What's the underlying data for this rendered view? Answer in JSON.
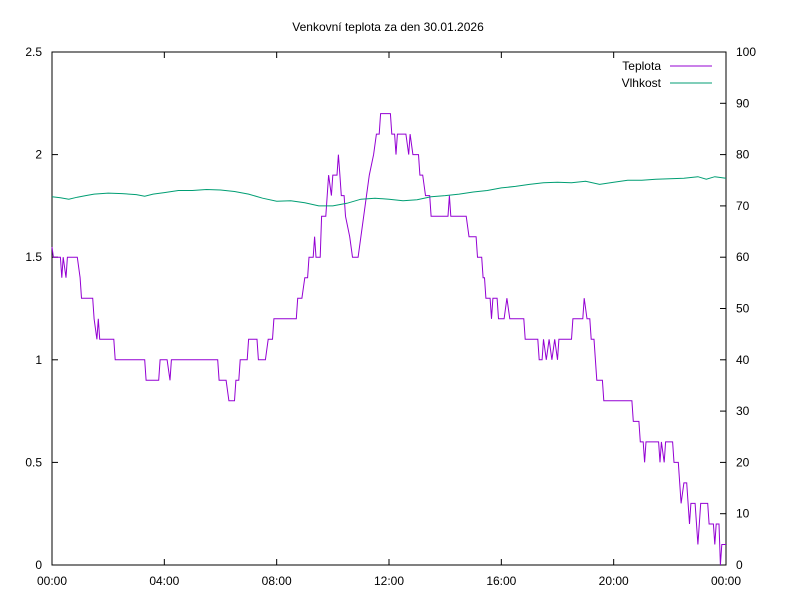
{
  "chart_data": {
    "type": "line",
    "title": "Venkovní teplota za den 30.01.2026",
    "x_ticks": [
      "00:00",
      "04:00",
      "08:00",
      "12:00",
      "16:00",
      "20:00",
      "00:00"
    ],
    "x_range_hours": [
      0,
      24
    ],
    "y_left": {
      "range": [
        0,
        2.5
      ],
      "ticks": [
        "0",
        "0.5",
        "1",
        "1.5",
        "2",
        "2.5"
      ]
    },
    "y_right": {
      "range": [
        0,
        100
      ],
      "ticks": [
        "0",
        "10",
        "20",
        "30",
        "40",
        "50",
        "60",
        "70",
        "80",
        "90",
        "100"
      ]
    },
    "grid": false,
    "legend_position": "top-right",
    "series": [
      {
        "name": "Teplota",
        "axis": "left",
        "color": "#9400d3",
        "points": [
          [
            0.0,
            1.55
          ],
          [
            0.05,
            1.5
          ],
          [
            0.3,
            1.5
          ],
          [
            0.35,
            1.4
          ],
          [
            0.4,
            1.5
          ],
          [
            0.5,
            1.4
          ],
          [
            0.55,
            1.5
          ],
          [
            0.9,
            1.5
          ],
          [
            1.0,
            1.4
          ],
          [
            1.05,
            1.3
          ],
          [
            1.45,
            1.3
          ],
          [
            1.5,
            1.2
          ],
          [
            1.6,
            1.1
          ],
          [
            1.65,
            1.2
          ],
          [
            1.7,
            1.1
          ],
          [
            2.2,
            1.1
          ],
          [
            2.25,
            1.0
          ],
          [
            3.3,
            1.0
          ],
          [
            3.35,
            0.9
          ],
          [
            3.8,
            0.9
          ],
          [
            3.85,
            1.0
          ],
          [
            4.1,
            1.0
          ],
          [
            4.2,
            0.9
          ],
          [
            4.25,
            1.0
          ],
          [
            5.9,
            1.0
          ],
          [
            5.95,
            0.9
          ],
          [
            6.2,
            0.9
          ],
          [
            6.3,
            0.8
          ],
          [
            6.5,
            0.8
          ],
          [
            6.55,
            0.9
          ],
          [
            6.65,
            0.9
          ],
          [
            6.7,
            1.0
          ],
          [
            6.95,
            1.0
          ],
          [
            7.0,
            1.1
          ],
          [
            7.3,
            1.1
          ],
          [
            7.35,
            1.0
          ],
          [
            7.6,
            1.0
          ],
          [
            7.7,
            1.1
          ],
          [
            7.85,
            1.1
          ],
          [
            7.9,
            1.2
          ],
          [
            8.7,
            1.2
          ],
          [
            8.75,
            1.3
          ],
          [
            8.9,
            1.3
          ],
          [
            9.0,
            1.4
          ],
          [
            9.1,
            1.4
          ],
          [
            9.15,
            1.5
          ],
          [
            9.3,
            1.5
          ],
          [
            9.35,
            1.6
          ],
          [
            9.4,
            1.5
          ],
          [
            9.55,
            1.5
          ],
          [
            9.6,
            1.7
          ],
          [
            9.75,
            1.7
          ],
          [
            9.8,
            1.8
          ],
          [
            9.85,
            1.9
          ],
          [
            9.95,
            1.8
          ],
          [
            10.0,
            1.9
          ],
          [
            10.15,
            1.9
          ],
          [
            10.2,
            2.0
          ],
          [
            10.25,
            1.9
          ],
          [
            10.3,
            1.8
          ],
          [
            10.4,
            1.8
          ],
          [
            10.45,
            1.7
          ],
          [
            10.6,
            1.6
          ],
          [
            10.7,
            1.5
          ],
          [
            10.9,
            1.5
          ],
          [
            11.0,
            1.6
          ],
          [
            11.1,
            1.7
          ],
          [
            11.2,
            1.8
          ],
          [
            11.3,
            1.9
          ],
          [
            11.45,
            2.0
          ],
          [
            11.55,
            2.1
          ],
          [
            11.65,
            2.1
          ],
          [
            11.7,
            2.2
          ],
          [
            12.05,
            2.2
          ],
          [
            12.1,
            2.1
          ],
          [
            12.2,
            2.1
          ],
          [
            12.25,
            2.0
          ],
          [
            12.3,
            2.1
          ],
          [
            12.6,
            2.1
          ],
          [
            12.7,
            2.0
          ],
          [
            12.75,
            2.1
          ],
          [
            12.85,
            2.0
          ],
          [
            13.05,
            2.0
          ],
          [
            13.1,
            1.9
          ],
          [
            13.2,
            1.9
          ],
          [
            13.3,
            1.8
          ],
          [
            13.45,
            1.8
          ],
          [
            13.5,
            1.7
          ],
          [
            14.1,
            1.7
          ],
          [
            14.15,
            1.8
          ],
          [
            14.2,
            1.7
          ],
          [
            14.75,
            1.7
          ],
          [
            14.85,
            1.6
          ],
          [
            15.1,
            1.6
          ],
          [
            15.15,
            1.5
          ],
          [
            15.3,
            1.5
          ],
          [
            15.35,
            1.4
          ],
          [
            15.4,
            1.4
          ],
          [
            15.45,
            1.3
          ],
          [
            15.6,
            1.3
          ],
          [
            15.65,
            1.2
          ],
          [
            15.7,
            1.3
          ],
          [
            15.85,
            1.3
          ],
          [
            15.9,
            1.2
          ],
          [
            16.1,
            1.2
          ],
          [
            16.2,
            1.3
          ],
          [
            16.3,
            1.2
          ],
          [
            16.8,
            1.2
          ],
          [
            16.85,
            1.1
          ],
          [
            17.3,
            1.1
          ],
          [
            17.35,
            1.0
          ],
          [
            17.45,
            1.0
          ],
          [
            17.5,
            1.1
          ],
          [
            17.6,
            1.0
          ],
          [
            17.7,
            1.1
          ],
          [
            17.8,
            1.0
          ],
          [
            17.9,
            1.1
          ],
          [
            18.0,
            1.0
          ],
          [
            18.05,
            1.1
          ],
          [
            18.5,
            1.1
          ],
          [
            18.55,
            1.2
          ],
          [
            18.9,
            1.2
          ],
          [
            18.95,
            1.3
          ],
          [
            19.05,
            1.2
          ],
          [
            19.15,
            1.2
          ],
          [
            19.2,
            1.1
          ],
          [
            19.3,
            1.1
          ],
          [
            19.35,
            1.0
          ],
          [
            19.4,
            0.9
          ],
          [
            19.6,
            0.9
          ],
          [
            19.65,
            0.8
          ],
          [
            20.65,
            0.8
          ],
          [
            20.7,
            0.7
          ],
          [
            20.9,
            0.7
          ],
          [
            20.95,
            0.6
          ],
          [
            21.05,
            0.6
          ],
          [
            21.1,
            0.5
          ],
          [
            21.15,
            0.6
          ],
          [
            21.6,
            0.6
          ],
          [
            21.65,
            0.5
          ],
          [
            21.7,
            0.6
          ],
          [
            21.8,
            0.5
          ],
          [
            21.85,
            0.6
          ],
          [
            22.1,
            0.6
          ],
          [
            22.15,
            0.5
          ],
          [
            22.3,
            0.5
          ],
          [
            22.35,
            0.4
          ],
          [
            22.4,
            0.3
          ],
          [
            22.5,
            0.4
          ],
          [
            22.6,
            0.4
          ],
          [
            22.65,
            0.3
          ],
          [
            22.7,
            0.2
          ],
          [
            22.75,
            0.3
          ],
          [
            22.9,
            0.3
          ],
          [
            22.95,
            0.2
          ],
          [
            23.0,
            0.1
          ],
          [
            23.05,
            0.2
          ],
          [
            23.1,
            0.3
          ],
          [
            23.35,
            0.3
          ],
          [
            23.4,
            0.2
          ],
          [
            23.55,
            0.2
          ],
          [
            23.6,
            0.1
          ],
          [
            23.65,
            0.2
          ],
          [
            23.75,
            0.2
          ],
          [
            23.8,
            0.0
          ],
          [
            23.85,
            0.1
          ],
          [
            24.0,
            0.1
          ]
        ]
      },
      {
        "name": "Vlhkost",
        "axis": "right",
        "color": "#009e73",
        "points": [
          [
            0.0,
            71.8
          ],
          [
            0.3,
            71.6
          ],
          [
            0.6,
            71.3
          ],
          [
            0.9,
            71.7
          ],
          [
            1.2,
            72.0
          ],
          [
            1.5,
            72.3
          ],
          [
            2.0,
            72.5
          ],
          [
            2.5,
            72.4
          ],
          [
            3.0,
            72.2
          ],
          [
            3.3,
            71.9
          ],
          [
            3.6,
            72.3
          ],
          [
            4.0,
            72.6
          ],
          [
            4.5,
            73.0
          ],
          [
            5.0,
            73.0
          ],
          [
            5.5,
            73.2
          ],
          [
            6.0,
            73.1
          ],
          [
            6.5,
            72.8
          ],
          [
            7.0,
            72.3
          ],
          [
            7.5,
            71.5
          ],
          [
            8.0,
            70.9
          ],
          [
            8.5,
            71.0
          ],
          [
            9.0,
            70.6
          ],
          [
            9.5,
            70.0
          ],
          [
            10.0,
            70.0
          ],
          [
            10.5,
            70.5
          ],
          [
            11.0,
            71.3
          ],
          [
            11.5,
            71.5
          ],
          [
            12.0,
            71.3
          ],
          [
            12.5,
            71.0
          ],
          [
            13.0,
            71.2
          ],
          [
            13.5,
            71.8
          ],
          [
            14.0,
            72.0
          ],
          [
            14.5,
            72.3
          ],
          [
            15.0,
            72.7
          ],
          [
            15.5,
            73.0
          ],
          [
            16.0,
            73.5
          ],
          [
            16.5,
            73.8
          ],
          [
            17.0,
            74.2
          ],
          [
            17.5,
            74.5
          ],
          [
            18.0,
            74.6
          ],
          [
            18.5,
            74.5
          ],
          [
            19.0,
            74.8
          ],
          [
            19.5,
            74.2
          ],
          [
            20.0,
            74.6
          ],
          [
            20.5,
            75.0
          ],
          [
            21.0,
            75.0
          ],
          [
            21.5,
            75.2
          ],
          [
            22.0,
            75.3
          ],
          [
            22.5,
            75.4
          ],
          [
            23.0,
            75.7
          ],
          [
            23.3,
            75.2
          ],
          [
            23.6,
            75.7
          ],
          [
            24.0,
            75.4
          ]
        ]
      }
    ]
  }
}
